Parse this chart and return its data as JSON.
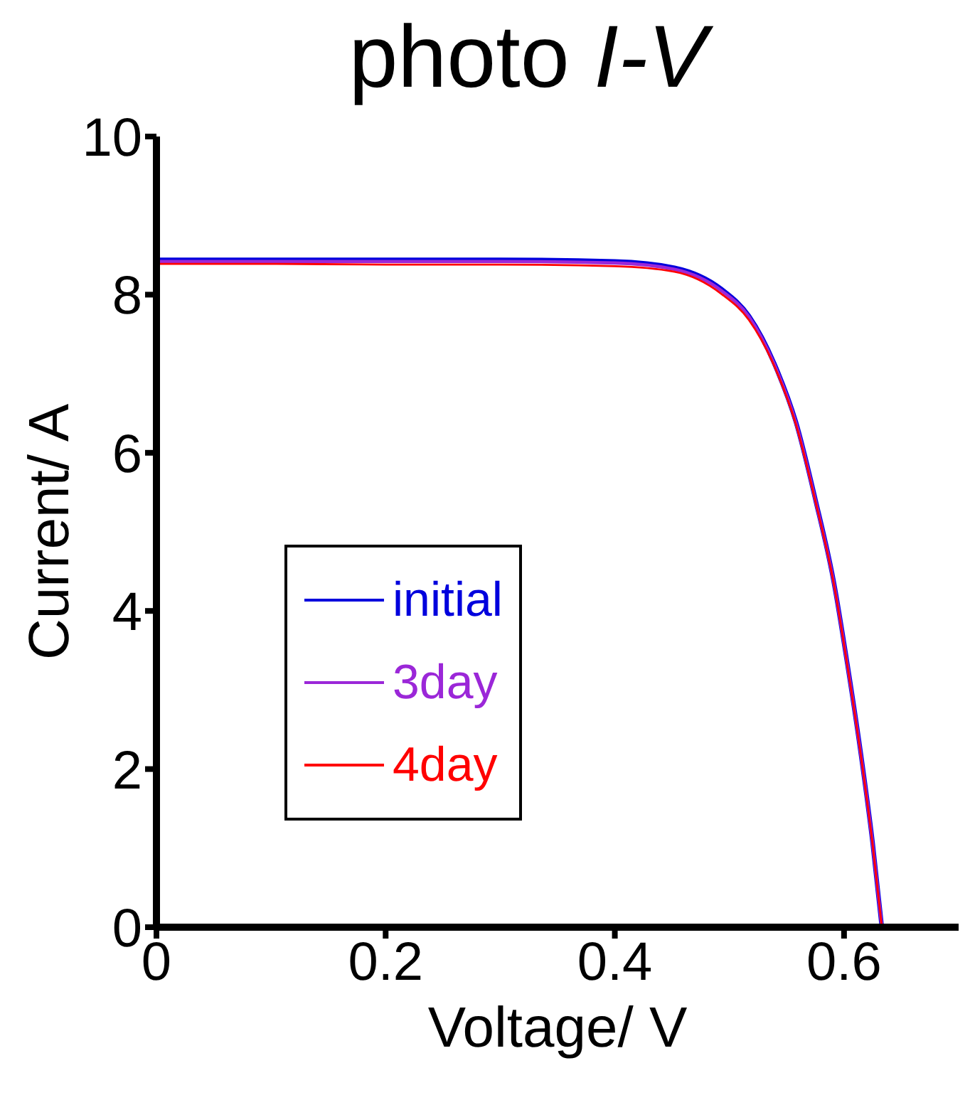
{
  "chart_data": {
    "type": "line",
    "title": "photo I-V",
    "xlabel": "Voltage/ V",
    "ylabel": "Current/ A",
    "xlim": [
      0,
      0.7
    ],
    "xticks": [
      0,
      0.2,
      0.4,
      0.6
    ],
    "ylim": [
      0,
      10
    ],
    "yticks": [
      0,
      2,
      4,
      6,
      8,
      10
    ],
    "grid": false,
    "legend": "left",
    "marker": "none",
    "line_style": "solid",
    "x": [
      0,
      0.1,
      0.2,
      0.3,
      0.4,
      0.452,
      0.493,
      0.517,
      0.542,
      0.558,
      0.575,
      0.591,
      0.603,
      0.615,
      0.625,
      0.633
    ],
    "series": [
      {
        "name": "initial",
        "color": "#0000dd",
        "values": [
          8.44,
          8.44,
          8.44,
          8.44,
          8.42,
          8.34,
          8.07,
          7.73,
          7.03,
          6.39,
          5.41,
          4.37,
          3.32,
          2.16,
          1.06,
          0
        ]
      },
      {
        "name": "3day",
        "color": "#9b27d8",
        "values": [
          8.42,
          8.42,
          8.42,
          8.42,
          8.4,
          8.32,
          8.05,
          7.72,
          7.02,
          6.38,
          5.4,
          4.36,
          3.31,
          2.15,
          1.05,
          0
        ]
      },
      {
        "name": "4day",
        "color": "#ff0000",
        "values": [
          8.39,
          8.39,
          8.38,
          8.38,
          8.36,
          8.29,
          8.01,
          7.68,
          7.0,
          6.36,
          5.39,
          4.35,
          3.3,
          2.14,
          1.04,
          0
        ]
      }
    ]
  }
}
